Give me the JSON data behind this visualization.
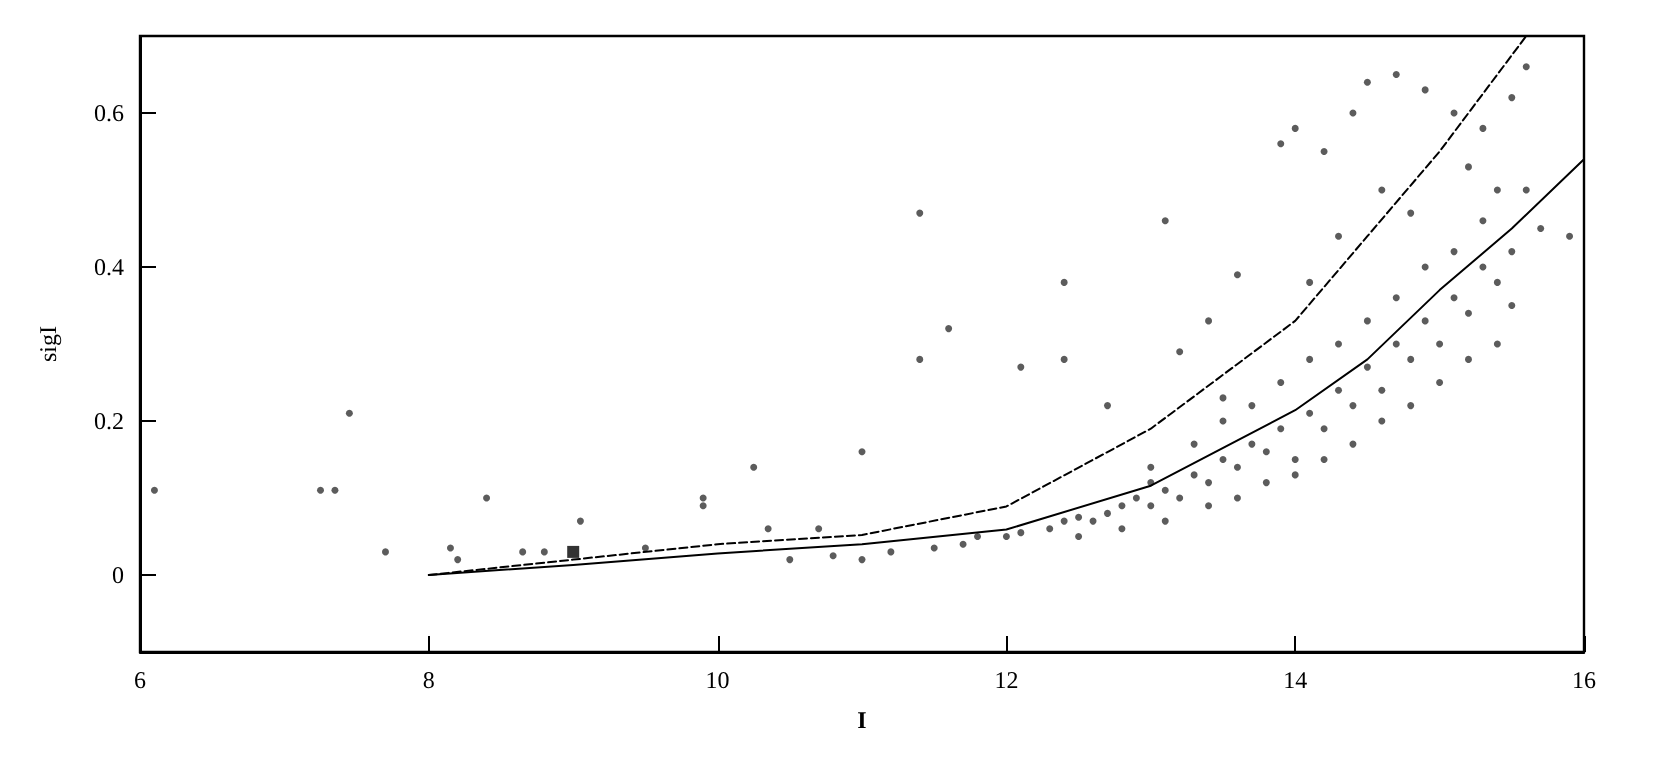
{
  "chart_data": {
    "type": "scatter",
    "xlabel": "I",
    "ylabel": "sigI",
    "xlim": [
      6,
      16
    ],
    "ylim": [
      -0.1,
      0.7
    ],
    "xticks": [
      6,
      8,
      10,
      12,
      14,
      16
    ],
    "yticks": [
      0,
      0.2,
      0.4,
      0.6
    ],
    "grid": false,
    "series": [
      {
        "color": "#333333",
        "marker": "circle",
        "x": [
          6.1,
          7.25,
          7.35,
          7.45,
          7.7,
          8.15,
          8.2,
          8.4,
          8.65,
          8.8,
          9.05,
          9.5,
          9.9,
          9.9,
          10.25,
          10.35,
          10.7,
          11.0,
          11.4,
          11.4,
          11.6,
          12.1,
          12.4,
          12.4,
          12.7,
          13.0,
          13.1,
          13.2,
          13.4,
          13.6,
          13.5,
          10.5,
          10.8,
          11.0,
          11.2,
          11.5,
          11.7,
          11.8,
          12.0,
          12.1,
          12.3,
          12.4,
          12.5,
          12.6,
          12.7,
          12.8,
          12.9,
          13.0,
          13.1,
          13.2,
          13.3,
          13.4,
          13.5,
          13.6,
          13.7,
          13.8,
          13.9,
          14.0,
          14.1,
          14.2,
          14.3,
          14.4,
          14.5,
          14.6,
          14.7,
          14.8,
          14.9,
          15.0,
          15.1,
          15.2,
          15.3,
          15.4,
          15.5,
          13.0,
          13.3,
          13.5,
          13.7,
          13.9,
          14.1,
          14.3,
          14.5,
          14.7,
          14.9,
          15.1,
          15.3,
          15.4,
          13.9,
          14.0,
          14.2,
          14.4,
          14.5,
          14.7,
          14.9,
          15.1,
          15.3,
          15.5,
          15.6,
          14.6,
          14.8,
          15.2,
          14.3,
          14.1,
          15.6,
          15.7,
          15.9,
          15.5,
          12.5,
          12.8,
          13.1,
          13.4,
          13.6,
          13.8,
          14.0,
          14.2,
          14.4,
          14.6,
          14.8,
          15.0,
          15.2,
          15.4
        ],
        "values": [
          0.11,
          0.11,
          0.11,
          0.21,
          0.03,
          0.035,
          0.02,
          0.1,
          0.03,
          0.03,
          0.07,
          0.035,
          0.1,
          0.09,
          0.14,
          0.06,
          0.06,
          0.16,
          0.47,
          0.28,
          0.32,
          0.27,
          0.28,
          0.38,
          0.22,
          0.12,
          0.46,
          0.29,
          0.33,
          0.39,
          0.23,
          0.02,
          0.025,
          0.02,
          0.03,
          0.035,
          0.04,
          0.05,
          0.05,
          0.055,
          0.06,
          0.07,
          0.075,
          0.07,
          0.08,
          0.09,
          0.1,
          0.09,
          0.11,
          0.1,
          0.13,
          0.12,
          0.15,
          0.14,
          0.17,
          0.16,
          0.19,
          0.15,
          0.21,
          0.19,
          0.24,
          0.22,
          0.27,
          0.24,
          0.3,
          0.28,
          0.33,
          0.3,
          0.36,
          0.34,
          0.4,
          0.38,
          0.42,
          0.14,
          0.17,
          0.2,
          0.22,
          0.25,
          0.28,
          0.3,
          0.33,
          0.36,
          0.4,
          0.42,
          0.46,
          0.5,
          0.56,
          0.58,
          0.55,
          0.6,
          0.64,
          0.65,
          0.63,
          0.6,
          0.58,
          0.62,
          0.66,
          0.5,
          0.47,
          0.53,
          0.44,
          0.38,
          0.5,
          0.45,
          0.44,
          0.35,
          0.05,
          0.06,
          0.07,
          0.09,
          0.1,
          0.12,
          0.13,
          0.15,
          0.17,
          0.2,
          0.22,
          0.25,
          0.28,
          0.3
        ]
      },
      {
        "type": "scatter",
        "color": "#000000",
        "marker": "square",
        "x": [
          9.0
        ],
        "values": [
          0.03
        ]
      },
      {
        "type": "line",
        "color": "#000000",
        "marker": "none",
        "line_style": "solid",
        "x": [
          8,
          9,
          10,
          11,
          12,
          13,
          14,
          14.5,
          15,
          15.5,
          16
        ],
        "values": [
          0,
          0.013,
          0.028,
          0.04,
          0.059,
          0.116,
          0.214,
          0.28,
          0.37,
          0.45,
          0.54
        ]
      },
      {
        "type": "line",
        "color": "#000000",
        "marker": "none",
        "line_style": "dashed",
        "x": [
          8,
          9,
          10,
          11,
          12,
          13,
          14,
          14.5,
          15,
          15.6
        ],
        "values": [
          0,
          0.02,
          0.04,
          0.052,
          0.089,
          0.19,
          0.33,
          0.44,
          0.55,
          0.7
        ]
      }
    ]
  }
}
